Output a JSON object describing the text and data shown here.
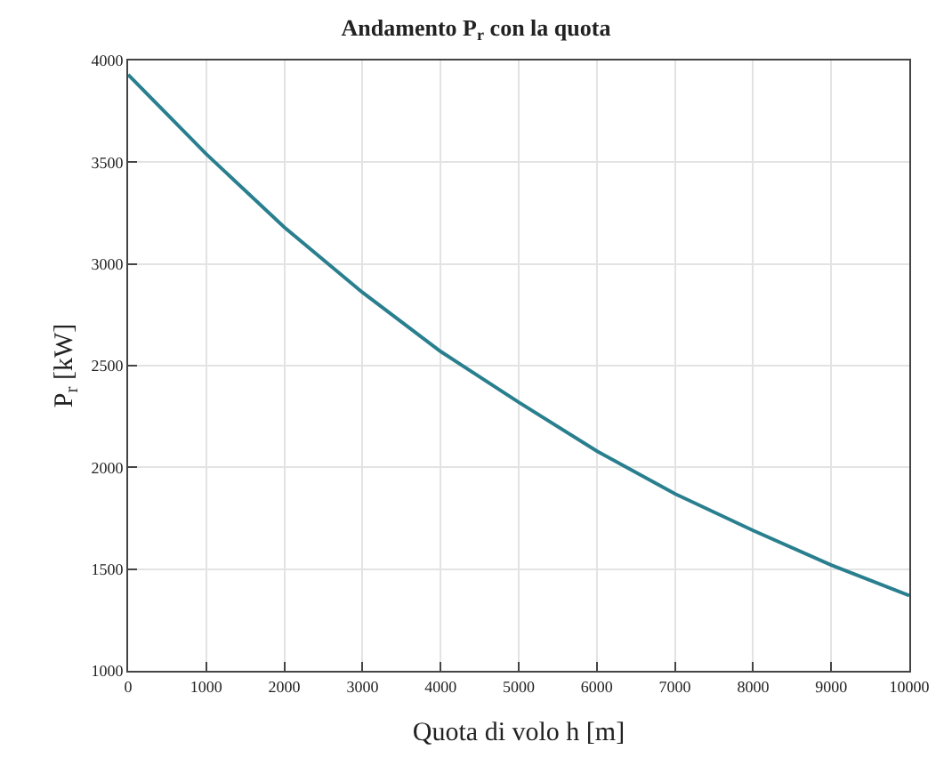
{
  "chart_data": {
    "type": "line",
    "title": "Andamento P$_{r}$ con la quota",
    "xlabel": "Quota di volo h [m]",
    "ylabel": "P$_{r}$ [kW]",
    "x": [
      0,
      1000,
      2000,
      3000,
      4000,
      5000,
      6000,
      7000,
      8000,
      9000,
      10000
    ],
    "series": [
      {
        "color": "#2a7f8f",
        "values": [
          3930,
          3540,
          3180,
          2860,
          2570,
          2320,
          2080,
          1870,
          1690,
          1520,
          1370
        ]
      }
    ],
    "xlim": [
      0,
      10000
    ],
    "xticks": [
      0,
      1000,
      2000,
      3000,
      4000,
      5000,
      6000,
      7000,
      8000,
      9000,
      10000
    ],
    "ylim": [
      1000,
      4000
    ],
    "yticks": [
      1000,
      1500,
      2000,
      2500,
      3000,
      3500,
      4000
    ],
    "grid": true,
    "line_style": "solid",
    "marker": "none"
  }
}
